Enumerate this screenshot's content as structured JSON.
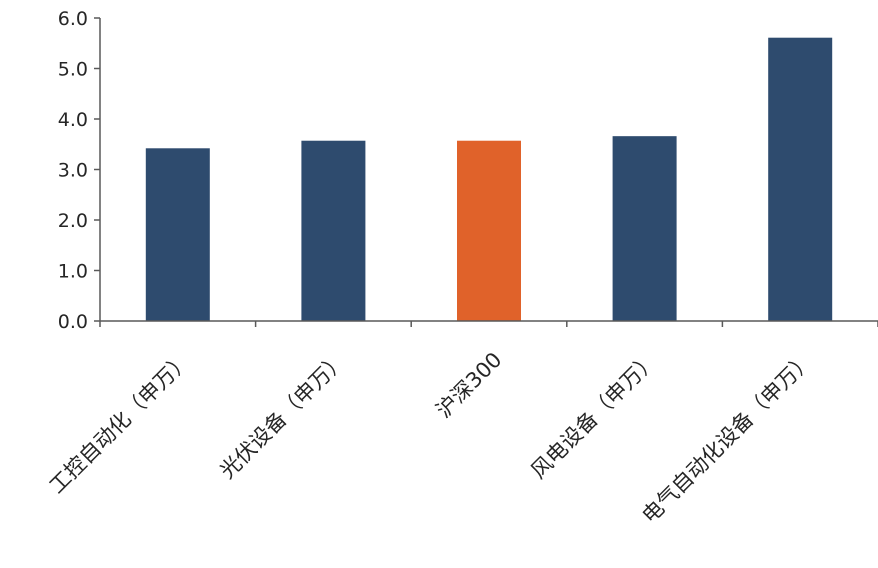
{
  "chart_data": {
    "type": "bar",
    "categories": [
      "工控自动化（申万）",
      "光伏设备（申万）",
      "沪深300",
      "风电设备（申万）",
      "电气自动化设备（申万）"
    ],
    "values": [
      3.42,
      3.57,
      3.57,
      3.66,
      5.61
    ],
    "ylim": [
      0,
      6
    ],
    "yticks": [
      "0.0",
      "1.0",
      "2.0",
      "3.0",
      "4.0",
      "5.0",
      "6.0"
    ],
    "grid": false,
    "legend": "none",
    "colors": {
      "default": "#2E4B6E",
      "highlight": "#E0622A"
    },
    "highlight_index": 2
  }
}
